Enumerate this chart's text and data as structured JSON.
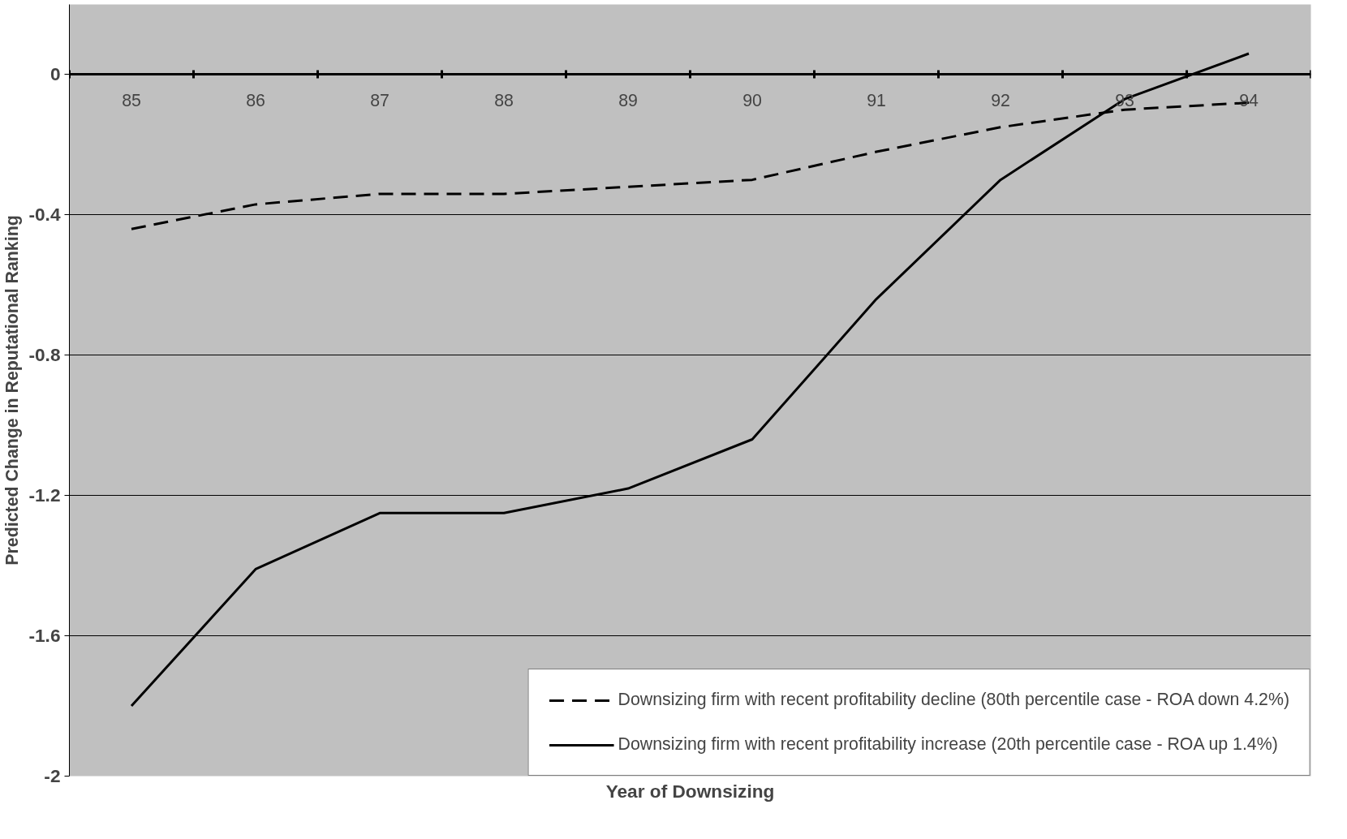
{
  "chart_data": {
    "type": "line",
    "xlabel": "Year of Downsizing",
    "ylabel": "Predicted Change in Reputational Ranking",
    "categories": [
      "85",
      "86",
      "87",
      "88",
      "89",
      "90",
      "91",
      "92",
      "93",
      "94"
    ],
    "ylim": [
      -2,
      0.2
    ],
    "yticks": [
      0,
      -0.4,
      -0.8,
      -1.2,
      -1.6,
      -2
    ],
    "grid": "y",
    "legend": "bottom right",
    "series": [
      {
        "name": "Downsizing firm with recent profitability decline (80th percentile case - ROA down 4.2%)",
        "color": "#000000",
        "line_style": "dashed",
        "values": [
          -0.44,
          -0.37,
          -0.34,
          -0.34,
          -0.32,
          -0.3,
          -0.22,
          -0.15,
          -0.1,
          -0.08
        ]
      },
      {
        "name": "Downsizing firm with recent profitability increase (20th percentile case - ROA up 1.4%)",
        "color": "#000000",
        "line_style": "solid",
        "values": [
          -1.8,
          -1.41,
          -1.25,
          -1.25,
          -1.18,
          -1.04,
          -0.64,
          -0.3,
          -0.07,
          0.06
        ]
      }
    ]
  }
}
